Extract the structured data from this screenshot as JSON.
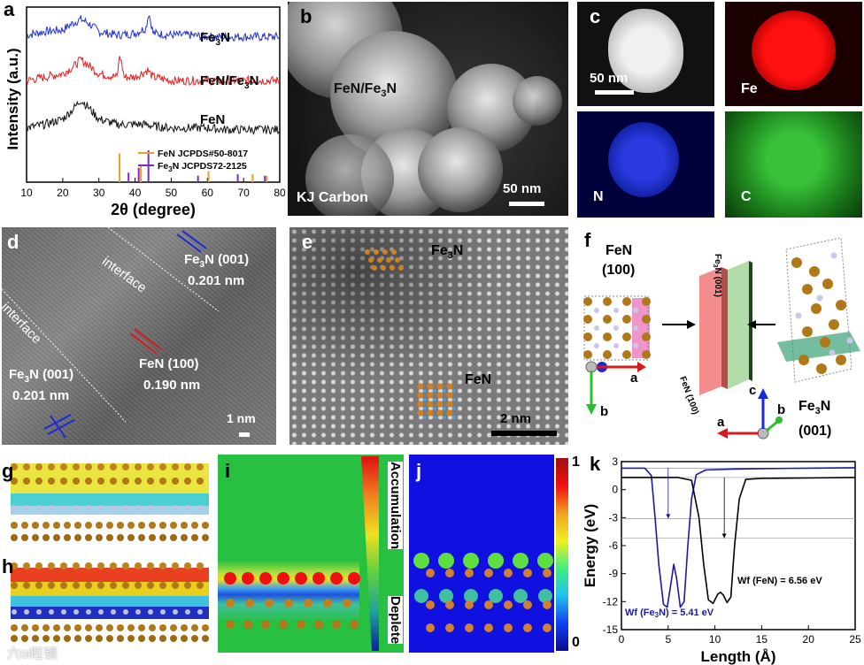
{
  "panel_labels": {
    "a": "a",
    "b": "b",
    "c": "c",
    "d": "d",
    "e": "e",
    "f": "f",
    "g": "g",
    "h": "h",
    "i": "i",
    "j": "j",
    "k": "k"
  },
  "chart_data": [
    {
      "type": "line",
      "panel": "a",
      "xlabel": "2θ (degree)",
      "ylabel": "Intensity (a.u.)",
      "xlim": [
        10,
        80
      ],
      "xticks": [
        10,
        20,
        30,
        40,
        50,
        60,
        70,
        80
      ],
      "series": [
        {
          "name": "Fe3N",
          "color": "#1f2fd6",
          "x": [
            10,
            15,
            20,
            23,
            25,
            27,
            30,
            35,
            40,
            43,
            43.8,
            45,
            50,
            55,
            60,
            65,
            70,
            75,
            80
          ],
          "y": [
            0.84,
            0.86,
            0.87,
            0.91,
            0.93,
            0.91,
            0.86,
            0.84,
            0.85,
            0.88,
            0.97,
            0.85,
            0.84,
            0.84,
            0.83,
            0.83,
            0.83,
            0.83,
            0.83
          ]
        },
        {
          "name": "FeN/Fe3N",
          "color": "#e02020",
          "x": [
            10,
            15,
            20,
            23,
            25,
            27,
            30,
            35,
            35.8,
            37,
            40,
            43.5,
            45,
            50,
            55,
            60,
            65,
            70,
            75,
            80
          ],
          "y": [
            0.58,
            0.6,
            0.62,
            0.66,
            0.7,
            0.67,
            0.62,
            0.6,
            0.73,
            0.6,
            0.6,
            0.64,
            0.6,
            0.58,
            0.58,
            0.58,
            0.58,
            0.58,
            0.58,
            0.58
          ]
        },
        {
          "name": "FeN",
          "color": "#111111",
          "x": [
            10,
            15,
            20,
            23,
            25,
            27,
            30,
            35,
            40,
            43,
            45,
            50,
            55,
            60,
            65,
            70,
            75,
            80
          ],
          "y": [
            0.31,
            0.33,
            0.36,
            0.42,
            0.47,
            0.43,
            0.36,
            0.33,
            0.33,
            0.33,
            0.32,
            0.31,
            0.31,
            0.31,
            0.3,
            0.3,
            0.3,
            0.3
          ]
        }
      ],
      "reference": [
        {
          "name": "FeN JCPDS#50-8017",
          "color": "#f0a020",
          "x": [
            35.7,
            41.6,
            60.3,
            72.5,
            76.4
          ],
          "h": [
            0.9,
            0.5,
            0.35,
            0.25,
            0.2
          ]
        },
        {
          "name": "Fe3N JCPDS72-2125",
          "color": "#7a2ad0",
          "x": [
            38.2,
            41.0,
            43.7,
            57.4,
            68.4,
            75.9
          ],
          "h": [
            0.3,
            0.45,
            1.0,
            0.2,
            0.25,
            0.2
          ]
        }
      ],
      "curve_labels": [
        "Fe3N",
        "FeN/Fe3N",
        "FeN"
      ]
    },
    {
      "type": "line",
      "panel": "k",
      "xlabel": "Length (Å)",
      "ylabel": "Energy (eV)",
      "xlim": [
        0,
        25
      ],
      "ylim": [
        -15,
        3
      ],
      "xticks": [
        0,
        5,
        10,
        15,
        20,
        25
      ],
      "yticks": [
        3,
        0,
        -3,
        -6,
        -9,
        -12,
        -15
      ],
      "series": [
        {
          "name": "Fe3N",
          "color": "#1a1aa8",
          "x": [
            0,
            2.5,
            3.2,
            3.6,
            4.0,
            4.5,
            4.9,
            5.3,
            5.6,
            5.9,
            6.3,
            6.7,
            7.1,
            7.5,
            8.0,
            9,
            12,
            15,
            20,
            25
          ],
          "y": [
            2.3,
            2.3,
            1.5,
            -3,
            -8,
            -12.3,
            -12.6,
            -10,
            -8,
            -9.5,
            -12.6,
            -12,
            -6,
            -1,
            1.6,
            2.1,
            2.2,
            2.25,
            2.3,
            2.35
          ]
        },
        {
          "name": "FeN",
          "color": "#000000",
          "x": [
            0,
            6,
            7.5,
            8.3,
            8.8,
            9.3,
            9.8,
            10.3,
            10.6,
            10.9,
            11.3,
            11.7,
            12.1,
            12.6,
            13.3,
            15,
            20,
            25
          ],
          "y": [
            1.3,
            1.3,
            1.0,
            -3,
            -8,
            -11.8,
            -12.2,
            -11.2,
            -11.0,
            -11.3,
            -12.1,
            -11.5,
            -6,
            -1,
            1.1,
            1.2,
            1.25,
            1.3
          ]
        }
      ],
      "annotations": [
        "Wf (FeN) = 6.56 eV",
        "Wf (Fe3N) = 5.41 eV"
      ]
    }
  ],
  "b": {
    "label_sample": "FeN/Fe3N",
    "label_carbon": "KJ Carbon",
    "scale": "50 nm"
  },
  "c": {
    "scale": "50 nm",
    "fe": "Fe",
    "n": "N",
    "c": "C"
  },
  "d": {
    "interface1": "interface",
    "interface2": "interface",
    "fe3n_a": "Fe3N (001)",
    "fe3n_a_d": "0.201 nm",
    "fen": "FeN (100)",
    "fen_d": "0.190 nm",
    "fe3n_b": "Fe3N (001)",
    "fe3n_b_d": "0.201 nm",
    "scale": "1 nm"
  },
  "e": {
    "fe3n": "Fe3N",
    "fen": "FeN",
    "scale": "2 nm"
  },
  "f": {
    "fen_title": "FeN",
    "fen_plane": "(100)",
    "plane_fe3n": "Fe3N (001)",
    "plane_fen": "FeN (100)",
    "fe3n_title": "Fe3N",
    "fe3n_plane": "(001)",
    "ax_a": "a",
    "ax_b": "b",
    "ax_c": "c",
    "ax_a2": "a",
    "ax_b2": "b"
  },
  "i": {
    "accumulation": "Accumulation",
    "deplete": "Deplete"
  },
  "j": {
    "max": "1",
    "min": "0"
  },
  "watermark": "六oi旺镜"
}
